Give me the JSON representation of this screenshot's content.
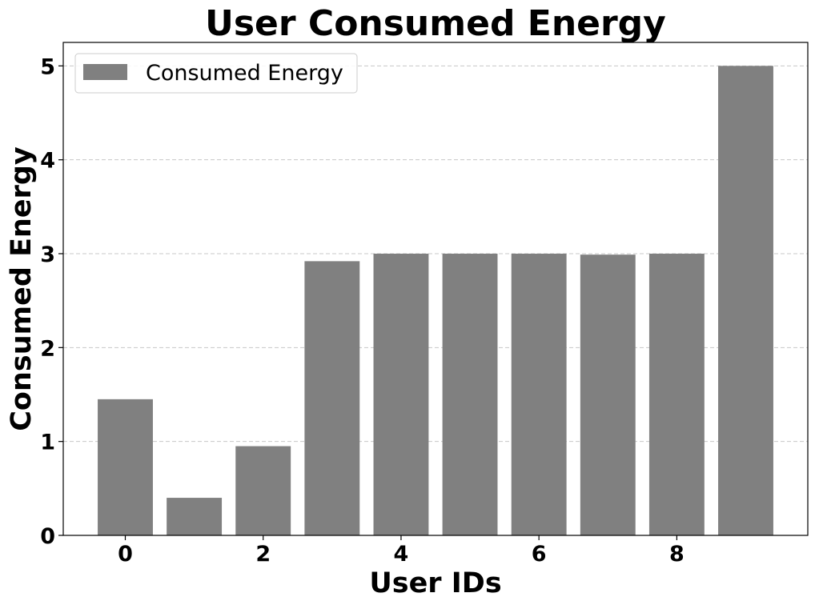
{
  "chart_data": {
    "type": "bar",
    "title": "User Consumed Energy",
    "xlabel": "User IDs",
    "ylabel": "Consumed Energy",
    "categories": [
      0,
      1,
      2,
      3,
      4,
      5,
      6,
      7,
      8,
      9
    ],
    "series": [
      {
        "name": "Consumed Energy",
        "values": [
          1.45,
          0.4,
          0.95,
          2.92,
          3.0,
          3.0,
          3.0,
          2.99,
          3.0,
          5.0
        ],
        "color": "#808080"
      }
    ],
    "xlim": [
      -0.9,
      9.9
    ],
    "ylim": [
      0,
      5.25
    ],
    "xticks": [
      0,
      2,
      4,
      6,
      8
    ],
    "yticks": [
      0,
      1,
      2,
      3,
      4,
      5
    ],
    "grid": "y-dashed",
    "legend_position": "top-left"
  }
}
